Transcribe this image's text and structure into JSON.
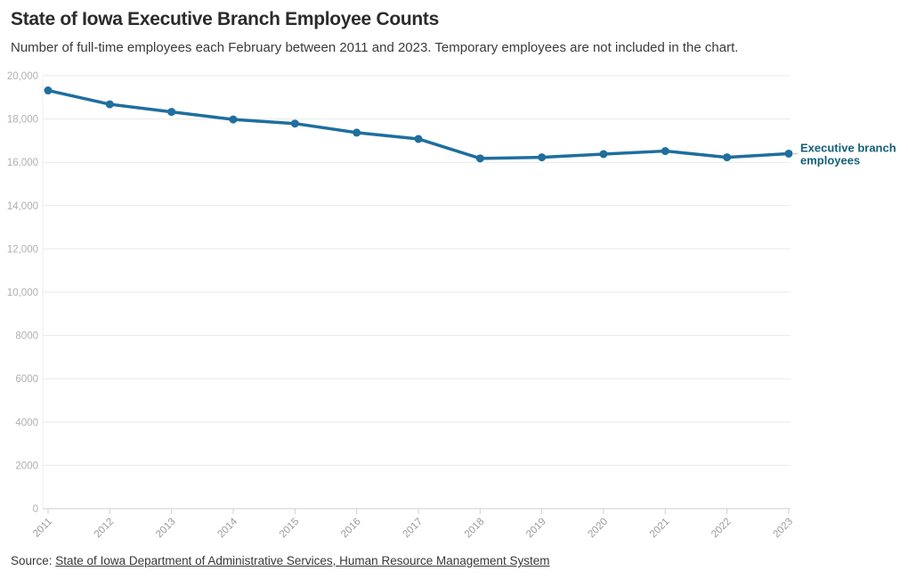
{
  "header": {
    "title": "State of Iowa Executive Branch Employee Counts",
    "subtitle": "Number of full-time employees each February between 2011 and 2023. Temporary employees are not included in the chart."
  },
  "footer": {
    "source_label": "Source: ",
    "source_link_text": "State of Iowa Department of Administrative Services, Human Resource Management System"
  },
  "chart_data": {
    "type": "line",
    "title": "State of Iowa Executive Branch Employee Counts",
    "subtitle": "Number of full-time employees each February between 2011 and 2023. Temporary employees are not included in the chart.",
    "x": [
      "2011",
      "2012",
      "2013",
      "2014",
      "2015",
      "2016",
      "2017",
      "2018",
      "2019",
      "2020",
      "2021",
      "2022",
      "2023"
    ],
    "series": [
      {
        "name": "Executive branch employees",
        "label_lines": [
          "Executive branch",
          "employees"
        ],
        "values": [
          19320,
          18680,
          18330,
          17980,
          17790,
          17370,
          17080,
          16180,
          16230,
          16380,
          16520,
          16230,
          16400
        ]
      }
    ],
    "xlabel": "",
    "ylabel": "",
    "ylim": [
      0,
      20000
    ],
    "grid": true,
    "legend_position": "end-of-line-label",
    "y_ticks": [
      {
        "value": 20000,
        "label": "20,000"
      },
      {
        "value": 18000,
        "label": "18,000"
      },
      {
        "value": 16000,
        "label": "16,000"
      },
      {
        "value": 14000,
        "label": "14,000"
      },
      {
        "value": 12000,
        "label": "12,000"
      },
      {
        "value": 10000,
        "label": "10,000"
      },
      {
        "value": 8000,
        "label": "8000"
      },
      {
        "value": 6000,
        "label": "6000"
      },
      {
        "value": 4000,
        "label": "4000"
      },
      {
        "value": 2000,
        "label": "2000"
      },
      {
        "value": 0,
        "label": "0"
      }
    ],
    "colors": {
      "line": "#1f6e9e",
      "point": "#1f6e9e",
      "series_label": "#15607a",
      "grid": "#e9e9e9",
      "axis_line": "#cfcfcf",
      "left_axis_line": "#ececec",
      "x_tick_text": "#9b9b9b",
      "y_tick_text": "#b0b0b0",
      "label_connector": "#c6c6c6"
    }
  }
}
